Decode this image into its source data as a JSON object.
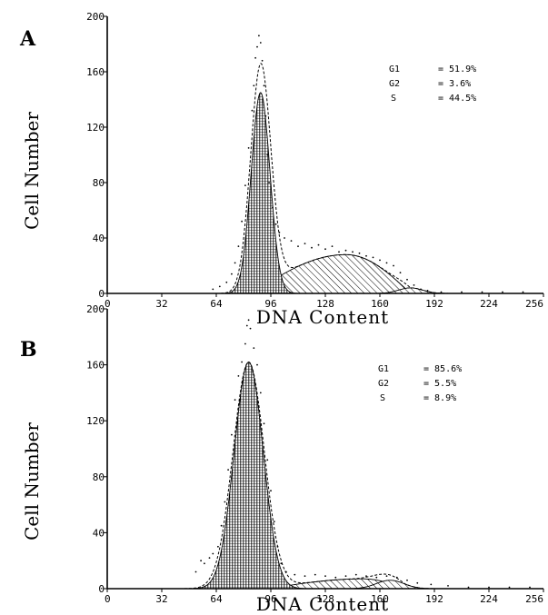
{
  "chart_data": [
    {
      "type": "area",
      "panel_label": "A",
      "xlabel": "DNA Content",
      "ylabel": "Cell Number",
      "xlim": [
        0,
        256
      ],
      "ylim": [
        0,
        200
      ],
      "xticks": [
        "0",
        "32",
        "64",
        "96",
        "128",
        "160",
        "192",
        "224",
        "256"
      ],
      "yticks": [
        "0",
        "40",
        "80",
        "120",
        "160",
        "200"
      ],
      "stats": [
        {
          "label": "G1",
          "value": "= 51.9%"
        },
        {
          "label": "G2",
          "value": "= 3.6%"
        },
        {
          "label": "S",
          "value": "= 44.5%"
        }
      ],
      "series": [
        {
          "type": "gaussian",
          "center": 90,
          "height": 145,
          "sigma": 5.5,
          "fill": "vertical-hatch"
        },
        {
          "type": "s_phase",
          "start": 85,
          "peak": 140,
          "end": 178,
          "height": 28,
          "fill": "diagonal-hatch"
        },
        {
          "type": "gaussian",
          "center": 178,
          "height": 4,
          "sigma": 7,
          "fill": "diagonal-hatch"
        }
      ],
      "envelope_peak": 162,
      "scatter": [
        [
          62,
          3
        ],
        [
          66,
          5
        ],
        [
          70,
          8
        ],
        [
          73,
          14
        ],
        [
          75,
          22
        ],
        [
          77,
          34
        ],
        [
          79,
          52
        ],
        [
          81,
          78
        ],
        [
          83,
          105
        ],
        [
          85,
          132
        ],
        [
          86,
          150
        ],
        [
          87,
          170
        ],
        [
          88,
          178
        ],
        [
          89,
          186
        ],
        [
          90,
          181
        ],
        [
          91,
          168
        ],
        [
          92,
          150
        ],
        [
          93,
          128
        ],
        [
          94,
          100
        ],
        [
          95,
          80
        ],
        [
          97,
          62
        ],
        [
          99,
          50
        ],
        [
          101,
          44
        ],
        [
          104,
          40
        ],
        [
          108,
          38
        ],
        [
          112,
          34
        ],
        [
          116,
          36
        ],
        [
          120,
          33
        ],
        [
          124,
          35
        ],
        [
          128,
          32
        ],
        [
          132,
          34
        ],
        [
          136,
          30
        ],
        [
          140,
          31
        ],
        [
          144,
          30
        ],
        [
          148,
          29
        ],
        [
          152,
          27
        ],
        [
          156,
          26
        ],
        [
          160,
          24
        ],
        [
          164,
          22
        ],
        [
          168,
          20
        ],
        [
          172,
          15
        ],
        [
          176,
          10
        ],
        [
          180,
          6
        ],
        [
          184,
          3
        ],
        [
          188,
          2
        ],
        [
          196,
          1
        ],
        [
          208,
          1
        ],
        [
          220,
          1
        ],
        [
          232,
          1
        ],
        [
          244,
          1
        ]
      ]
    },
    {
      "type": "area",
      "panel_label": "B",
      "xlabel": "DNA Content",
      "ylabel": "Cell Number",
      "xlim": [
        0,
        256
      ],
      "ylim": [
        0,
        200
      ],
      "xticks": [
        "0",
        "32",
        "64",
        "96",
        "128",
        "160",
        "192",
        "224",
        "256"
      ],
      "yticks": [
        "0",
        "40",
        "80",
        "120",
        "160",
        "200"
      ],
      "stats": [
        {
          "label": "G1",
          "value": "= 85.6%"
        },
        {
          "label": "G2",
          "value": "= 5.5%"
        },
        {
          "label": "S",
          "value": "= 8.9%"
        }
      ],
      "series": [
        {
          "type": "gaussian",
          "center": 83,
          "height": 162,
          "sigma": 8.5,
          "fill": "vertical-hatch"
        },
        {
          "type": "s_phase",
          "start": 95,
          "peak": 150,
          "end": 175,
          "height": 7,
          "fill": "diagonal-hatch"
        },
        {
          "type": "gaussian",
          "center": 166,
          "height": 6,
          "sigma": 8,
          "fill": "diagonal-hatch"
        }
      ],
      "envelope_peak": 162,
      "scatter": [
        [
          52,
          12
        ],
        [
          55,
          20
        ],
        [
          57,
          18
        ],
        [
          60,
          22
        ],
        [
          62,
          25
        ],
        [
          65,
          30
        ],
        [
          67,
          45
        ],
        [
          69,
          62
        ],
        [
          71,
          85
        ],
        [
          73,
          110
        ],
        [
          75,
          135
        ],
        [
          77,
          152
        ],
        [
          79,
          162
        ],
        [
          81,
          175
        ],
        [
          82,
          188
        ],
        [
          83,
          192
        ],
        [
          84,
          186
        ],
        [
          86,
          172
        ],
        [
          88,
          160
        ],
        [
          90,
          140
        ],
        [
          92,
          118
        ],
        [
          94,
          92
        ],
        [
          96,
          70
        ],
        [
          98,
          48
        ],
        [
          100,
          30
        ],
        [
          102,
          18
        ],
        [
          105,
          12
        ],
        [
          110,
          10
        ],
        [
          116,
          9
        ],
        [
          122,
          10
        ],
        [
          128,
          9
        ],
        [
          134,
          8
        ],
        [
          140,
          9
        ],
        [
          146,
          10
        ],
        [
          152,
          9
        ],
        [
          158,
          8
        ],
        [
          164,
          9
        ],
        [
          170,
          8
        ],
        [
          176,
          6
        ],
        [
          182,
          4
        ],
        [
          190,
          3
        ],
        [
          200,
          2
        ],
        [
          212,
          1
        ],
        [
          224,
          1
        ],
        [
          236,
          1
        ],
        [
          248,
          1
        ]
      ]
    }
  ]
}
